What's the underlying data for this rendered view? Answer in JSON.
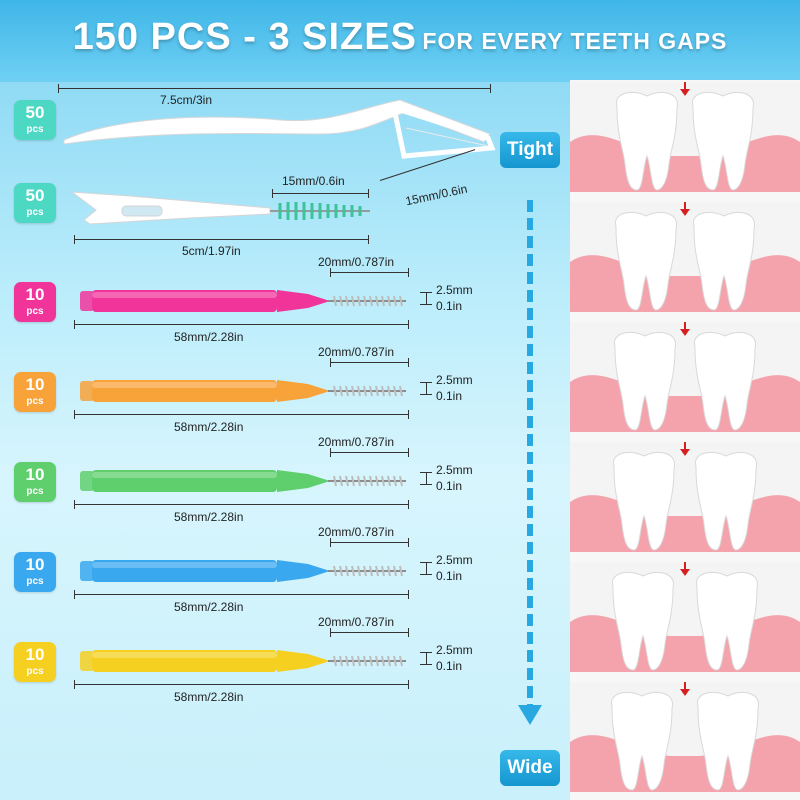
{
  "header": {
    "title_big": "150 PCS - 3 SIZES",
    "title_small": "FOR EVERY TEETH GAPS"
  },
  "flosser": {
    "badge_num": "50",
    "badge_pcs": "pcs",
    "color": "#4dd8c3",
    "length_label": "7.5cm/3in",
    "head_label": "15mm/0.6in"
  },
  "pick": {
    "badge_num": "50",
    "badge_pcs": "pcs",
    "color": "#4dd8c3",
    "length_label": "5cm/1.97in",
    "brush_label": "15mm/0.6in"
  },
  "brushes": [
    {
      "badge_num": "10",
      "badge_pcs": "pcs",
      "color": "#f0349a",
      "brush_label": "20mm/0.787in",
      "gap_mm": "2.5mm",
      "gap_in": "0.1in",
      "length_label": "58mm/2.28in"
    },
    {
      "badge_num": "10",
      "badge_pcs": "pcs",
      "color": "#f8a23a",
      "brush_label": "20mm/0.787in",
      "gap_mm": "2.5mm",
      "gap_in": "0.1in",
      "length_label": "58mm/2.28in"
    },
    {
      "badge_num": "10",
      "badge_pcs": "pcs",
      "color": "#5fcf6d",
      "brush_label": "20mm/0.787in",
      "gap_mm": "2.5mm",
      "gap_in": "0.1in",
      "length_label": "58mm/2.28in"
    },
    {
      "badge_num": "10",
      "badge_pcs": "pcs",
      "color": "#3aa8ef",
      "brush_label": "20mm/0.787in",
      "gap_mm": "2.5mm",
      "gap_in": "0.1in",
      "length_label": "58mm/2.28in"
    },
    {
      "badge_num": "10",
      "badge_pcs": "pcs",
      "color": "#f5d020",
      "brush_label": "20mm/0.787in",
      "gap_mm": "2.5mm",
      "gap_in": "0.1in",
      "length_label": "58mm/2.28in"
    }
  ],
  "scale": {
    "top_label": "Tight",
    "bottom_label": "Wide"
  }
}
